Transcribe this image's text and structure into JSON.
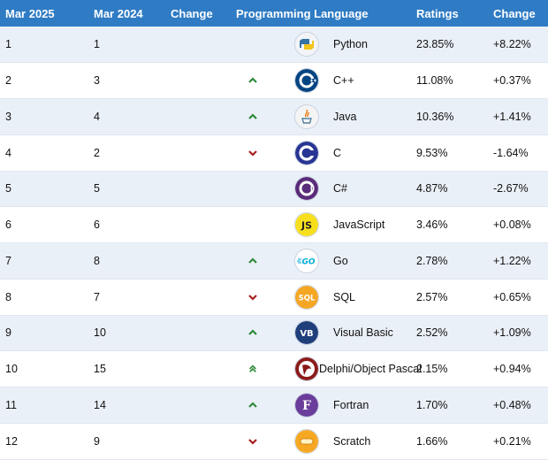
{
  "headers": {
    "current": "Mar 2025",
    "previous": "Mar 2024",
    "change": "Change",
    "language": "Programming Language",
    "ratings": "Ratings",
    "ratings_change": "Change"
  },
  "colors": {
    "header_bg": "#2f7bc4",
    "up_arrow": "#2e8b3a",
    "down_arrow": "#a81c1c"
  },
  "rows": [
    {
      "now": "1",
      "prev": "1",
      "trend": "none",
      "icon": "python-logo-icon",
      "lang": "Python",
      "rating": "23.85%",
      "delta": "+8.22%"
    },
    {
      "now": "2",
      "prev": "3",
      "trend": "up",
      "icon": "cpp-logo-icon",
      "lang": "C++",
      "rating": "11.08%",
      "delta": "+0.37%"
    },
    {
      "now": "3",
      "prev": "4",
      "trend": "up",
      "icon": "java-logo-icon",
      "lang": "Java",
      "rating": "10.36%",
      "delta": "+1.41%"
    },
    {
      "now": "4",
      "prev": "2",
      "trend": "down",
      "icon": "c-logo-icon",
      "lang": "C",
      "rating": "9.53%",
      "delta": "-1.64%"
    },
    {
      "now": "5",
      "prev": "5",
      "trend": "none",
      "icon": "csharp-logo-icon",
      "lang": "C#",
      "rating": "4.87%",
      "delta": "-2.67%"
    },
    {
      "now": "6",
      "prev": "6",
      "trend": "none",
      "icon": "javascript-logo-icon",
      "lang": "JavaScript",
      "rating": "3.46%",
      "delta": "+0.08%"
    },
    {
      "now": "7",
      "prev": "8",
      "trend": "up",
      "icon": "go-logo-icon",
      "lang": "Go",
      "rating": "2.78%",
      "delta": "+1.22%"
    },
    {
      "now": "8",
      "prev": "7",
      "trend": "down",
      "icon": "sql-logo-icon",
      "lang": "SQL",
      "rating": "2.57%",
      "delta": "+0.65%"
    },
    {
      "now": "9",
      "prev": "10",
      "trend": "up",
      "icon": "visual-basic-logo-icon",
      "lang": "Visual Basic",
      "rating": "2.52%",
      "delta": "+1.09%"
    },
    {
      "now": "10",
      "prev": "15",
      "trend": "up2",
      "icon": "delphi-logo-icon",
      "lang": "Delphi/Object Pascal",
      "rating": "2.15%",
      "delta": "+0.94%"
    },
    {
      "now": "11",
      "prev": "14",
      "trend": "up",
      "icon": "fortran-logo-icon",
      "lang": "Fortran",
      "rating": "1.70%",
      "delta": "+0.48%"
    },
    {
      "now": "12",
      "prev": "9",
      "trend": "down",
      "icon": "scratch-logo-icon",
      "lang": "Scratch",
      "rating": "1.66%",
      "delta": "+0.21%"
    }
  ],
  "logo_text": {
    "js": "JS",
    "go": "GO",
    "sql": "SQL",
    "vb": "VB",
    "fortran": "F"
  }
}
